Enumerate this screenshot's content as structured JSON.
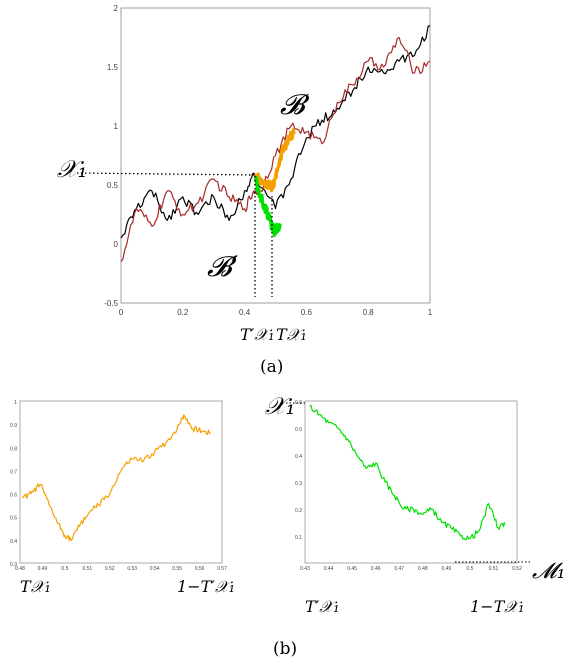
{
  "chart_data": [
    {
      "panel_label": "(a)",
      "type": "line",
      "xlim": [
        0,
        1
      ],
      "ylim": [
        -0.5,
        2
      ],
      "x_ticks": [
        "0",
        "0.2",
        "0.4",
        "0.6",
        "0.8",
        "1"
      ],
      "y_ticks": [
        "-0.5",
        "0",
        "0.5",
        "1",
        "1.5",
        "2"
      ],
      "grid": false,
      "series": [
        {
          "color": "#000000",
          "x": [
            0,
            0.05,
            0.1,
            0.15,
            0.2,
            0.25,
            0.3,
            0.35,
            0.4,
            0.43,
            0.5,
            0.55,
            0.6,
            0.65,
            0.7,
            0.75,
            0.8,
            0.85,
            0.9,
            0.95,
            1.0
          ],
          "y": [
            0.05,
            0.3,
            0.45,
            0.2,
            0.4,
            0.25,
            0.4,
            0.2,
            0.45,
            0.6,
            0.3,
            0.55,
            0.9,
            1.05,
            1.15,
            1.3,
            1.5,
            1.45,
            1.55,
            1.6,
            1.85
          ]
        },
        {
          "color": "#a52a2a",
          "x": [
            0,
            0.05,
            0.1,
            0.15,
            0.2,
            0.25,
            0.3,
            0.35,
            0.4,
            0.43,
            0.45,
            0.5,
            0.55,
            0.6,
            0.65,
            0.7,
            0.75,
            0.8,
            0.85,
            0.9,
            0.95,
            1.0
          ],
          "y": [
            -0.15,
            0.3,
            0.15,
            0.45,
            0.25,
            0.35,
            0.55,
            0.4,
            0.3,
            0.45,
            0.45,
            0.75,
            1.0,
            0.95,
            0.85,
            1.2,
            1.35,
            1.55,
            1.5,
            1.75,
            1.45,
            1.55
          ]
        },
        {
          "color": "#f5a000",
          "x": [
            0.435,
            0.45,
            0.465,
            0.48,
            0.49,
            0.5,
            0.51,
            0.52,
            0.53,
            0.545,
            0.56
          ],
          "y": [
            0.56,
            0.55,
            0.52,
            0.5,
            0.47,
            0.56,
            0.65,
            0.78,
            0.83,
            0.9,
            0.93
          ]
        },
        {
          "color": "#00e000",
          "x": [
            0.435,
            0.445,
            0.455,
            0.465,
            0.475,
            0.485,
            0.495,
            0.5,
            0.505,
            0.515
          ],
          "y": [
            0.56,
            0.45,
            0.38,
            0.32,
            0.25,
            0.18,
            0.12,
            0.1,
            0.14,
            0.17
          ]
        }
      ],
      "annotations": [
        {
          "text": "𝒳₁",
          "note": "dotted guide at y≈0.57"
        },
        {
          "text": "𝓑"
        },
        {
          "text": "𝓑′"
        },
        {
          "text": "T′𝒳₁"
        },
        {
          "text": "T𝒳₁"
        }
      ]
    },
    {
      "panel_label": "(b)",
      "type": "line",
      "xlim": [
        0.48,
        0.57
      ],
      "ylim": [
        0.3,
        1
      ],
      "x_ticks": [
        "0.48",
        "0.49",
        "0.5",
        "0.51",
        "0.52",
        "0.53",
        "0.54",
        "0.55",
        "0.56",
        "0.57"
      ],
      "y_ticks": [
        "0.3",
        "0.4",
        "0.5",
        "0.6",
        "0.7",
        "0.8",
        "0.9",
        "1"
      ],
      "series": [
        {
          "color": "#f5a000",
          "x": [
            0.481,
            0.485,
            0.489,
            0.493,
            0.497,
            0.5,
            0.503,
            0.507,
            0.511,
            0.515,
            0.52,
            0.525,
            0.53,
            0.535,
            0.54,
            0.545,
            0.55,
            0.553,
            0.557,
            0.561,
            0.565
          ],
          "y": [
            0.58,
            0.6,
            0.64,
            0.55,
            0.47,
            0.42,
            0.4,
            0.47,
            0.52,
            0.55,
            0.6,
            0.7,
            0.75,
            0.74,
            0.78,
            0.82,
            0.88,
            0.94,
            0.88,
            0.87,
            0.86
          ]
        }
      ],
      "bottom_labels": [
        "T𝒳₁",
        "1−T′𝒳₁"
      ]
    },
    {
      "type": "line",
      "xlim": [
        0.43,
        0.52
      ],
      "ylim": [
        0,
        0.6
      ],
      "x_ticks": [
        "0.43",
        "0.44",
        "0.45",
        "0.46",
        "0.47",
        "0.48",
        "0.49",
        "0.5",
        "0.51",
        "0.52"
      ],
      "y_ticks": [
        "0.1",
        "0.2",
        "0.3",
        "0.4",
        "0.5",
        "0.6"
      ],
      "series": [
        {
          "color": "#00e000",
          "x": [
            0.432,
            0.436,
            0.44,
            0.444,
            0.448,
            0.452,
            0.456,
            0.46,
            0.464,
            0.468,
            0.472,
            0.476,
            0.48,
            0.484,
            0.488,
            0.492,
            0.496,
            0.5,
            0.504,
            0.508,
            0.512,
            0.515
          ],
          "y": [
            0.58,
            0.55,
            0.52,
            0.5,
            0.46,
            0.4,
            0.35,
            0.37,
            0.3,
            0.25,
            0.2,
            0.2,
            0.18,
            0.2,
            0.15,
            0.13,
            0.1,
            0.09,
            0.12,
            0.22,
            0.13,
            0.15
          ]
        }
      ],
      "annotations": [
        {
          "text": "𝒳₁"
        },
        {
          "text": "𝓜₁"
        }
      ],
      "bottom_labels": [
        "T′𝒳₁",
        "1−T𝒳₁"
      ]
    }
  ],
  "labels": {
    "panel_a": "(a)",
    "panel_b": "(b)",
    "X1": "𝒳₁",
    "B": "𝓑",
    "Bprime": "𝓑′",
    "T_prime": "T′𝒳₁",
    "T": "T𝒳₁",
    "M1": "𝓜₁",
    "one_minus_T_prime": "1−T′𝒳₁",
    "one_minus_T": "1−T𝒳₁"
  }
}
